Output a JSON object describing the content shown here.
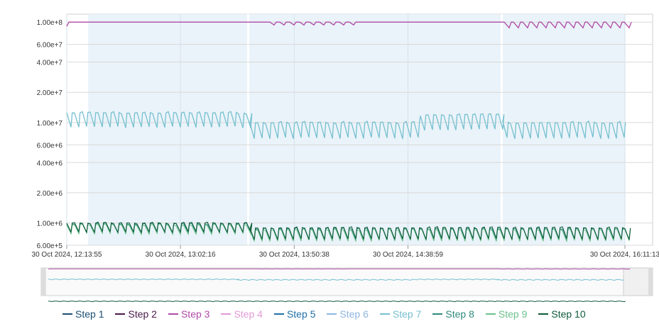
{
  "chart_data": {
    "type": "line",
    "y_scale": "log",
    "ylim": [
      600000,
      120000000
    ],
    "yticks": [
      "1.00e+8",
      "6.00e+7",
      "4.00e+7",
      "2.00e+7",
      "1.00e+7",
      "6.00e+6",
      "4.00e+6",
      "2.00e+6",
      "1.00e+6",
      "6.00e+5"
    ],
    "ytick_values": [
      100000000,
      60000000,
      40000000,
      20000000,
      10000000,
      6000000,
      4000000,
      2000000,
      1000000,
      600000
    ],
    "xlim": [
      "2024-10-30 12:13:55",
      "2024-10-30 16:11:13"
    ],
    "xticks": [
      {
        "t": "2024-10-30 12:13:55",
        "label": "30 Oct 2024, 12:13:55"
      },
      {
        "t": "2024-10-30 13:02:16",
        "label": "30 Oct 2024, 13:02:16"
      },
      {
        "t": "2024-10-30 13:50:38",
        "label": "30 Oct 2024, 13:50:38"
      },
      {
        "t": "2024-10-30 14:38:59",
        "label": "30 Oct 2024, 14:38:59"
      },
      {
        "t": "2024-10-30 16:11:13",
        "label": "30 Oct 2024, 16:11:13"
      }
    ],
    "shaded_band": [
      "2024-10-30 12:23:00",
      "2024-10-30 16:11:13"
    ],
    "grid": true,
    "legend_position": "bottom",
    "series": [
      {
        "name": "Step 1",
        "color": "#1b4f72"
      },
      {
        "name": "Step 2",
        "color": "#4a1a4a"
      },
      {
        "name": "Step 3",
        "color": "#b04aa8",
        "level": "high",
        "values_approx": [
          100000000,
          95000000
        ]
      },
      {
        "name": "Step 4",
        "color": "#e19ad8"
      },
      {
        "name": "Step 5",
        "color": "#1f6fa8"
      },
      {
        "name": "Step 6",
        "color": "#8fb6e0"
      },
      {
        "name": "Step 7",
        "color": "#76c0d0",
        "level": "mid",
        "values_approx": [
          7000000,
          13000000
        ]
      },
      {
        "name": "Step 8",
        "color": "#2e8a7e"
      },
      {
        "name": "Step 9",
        "color": "#6cc08c"
      },
      {
        "name": "Step 10",
        "color": "#0e5a3a",
        "level": "low",
        "values_approx": [
          650000,
          950000
        ]
      }
    ]
  }
}
